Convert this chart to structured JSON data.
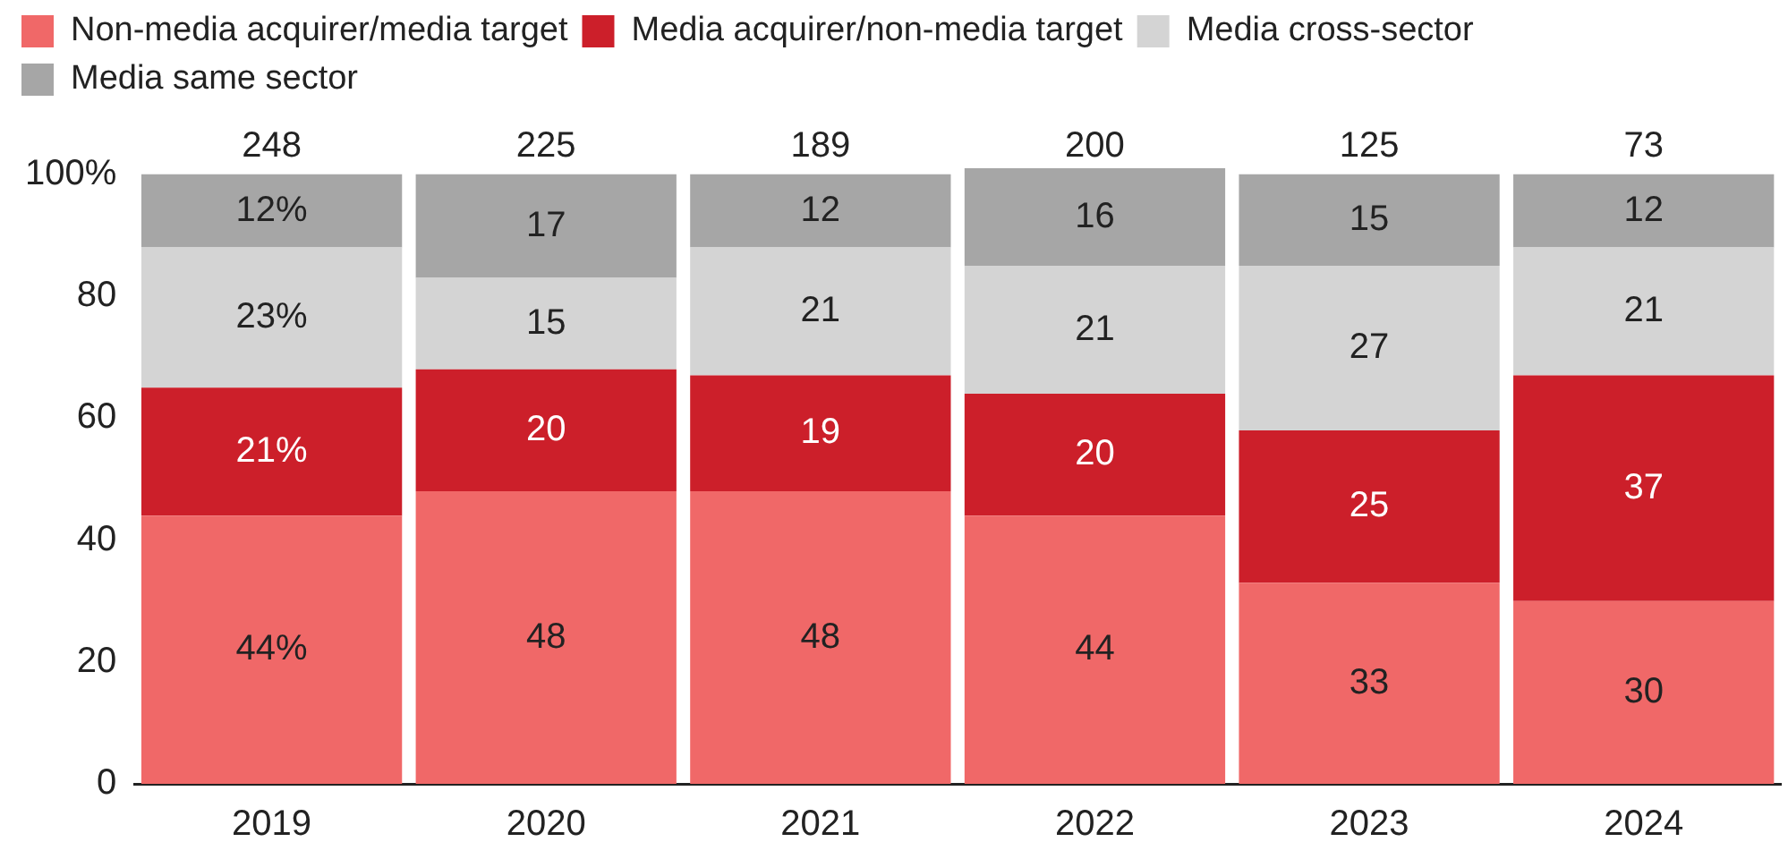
{
  "chart_data": {
    "type": "bar",
    "stacked": true,
    "categories": [
      "2019",
      "2020",
      "2021",
      "2022",
      "2023",
      "2024"
    ],
    "series": [
      {
        "name": "Non-media acquirer/media target",
        "color": "#f06868",
        "values": [
          44,
          48,
          48,
          44,
          33,
          30
        ],
        "value_labels": [
          "44%",
          "48",
          "48",
          "44",
          "33",
          "30"
        ]
      },
      {
        "name": "Media acquirer/non-media target",
        "color": "#cc1f2a",
        "values": [
          21,
          20,
          19,
          20,
          25,
          37
        ],
        "value_labels": [
          "21%",
          "20",
          "19",
          "20",
          "25",
          "37"
        ]
      },
      {
        "name": "Media cross-sector",
        "color": "#d4d4d4",
        "values": [
          23,
          15,
          21,
          21,
          27,
          21
        ],
        "value_labels": [
          "23%",
          "15",
          "21",
          "21",
          "27",
          "21"
        ]
      },
      {
        "name": "Media same sector",
        "color": "#a6a6a6",
        "values": [
          12,
          17,
          12,
          16,
          15,
          12
        ],
        "value_labels": [
          "12%",
          "17",
          "12",
          "16",
          "15",
          "12"
        ]
      }
    ],
    "annotations": [
      "248",
      "225",
      "189",
      "200",
      "125",
      "73"
    ],
    "ylim": [
      0,
      101
    ],
    "yticks": [
      0,
      20,
      40,
      60,
      80,
      {
        "value": 100,
        "label": "100%"
      }
    ],
    "grid": false,
    "legend": "top left"
  }
}
